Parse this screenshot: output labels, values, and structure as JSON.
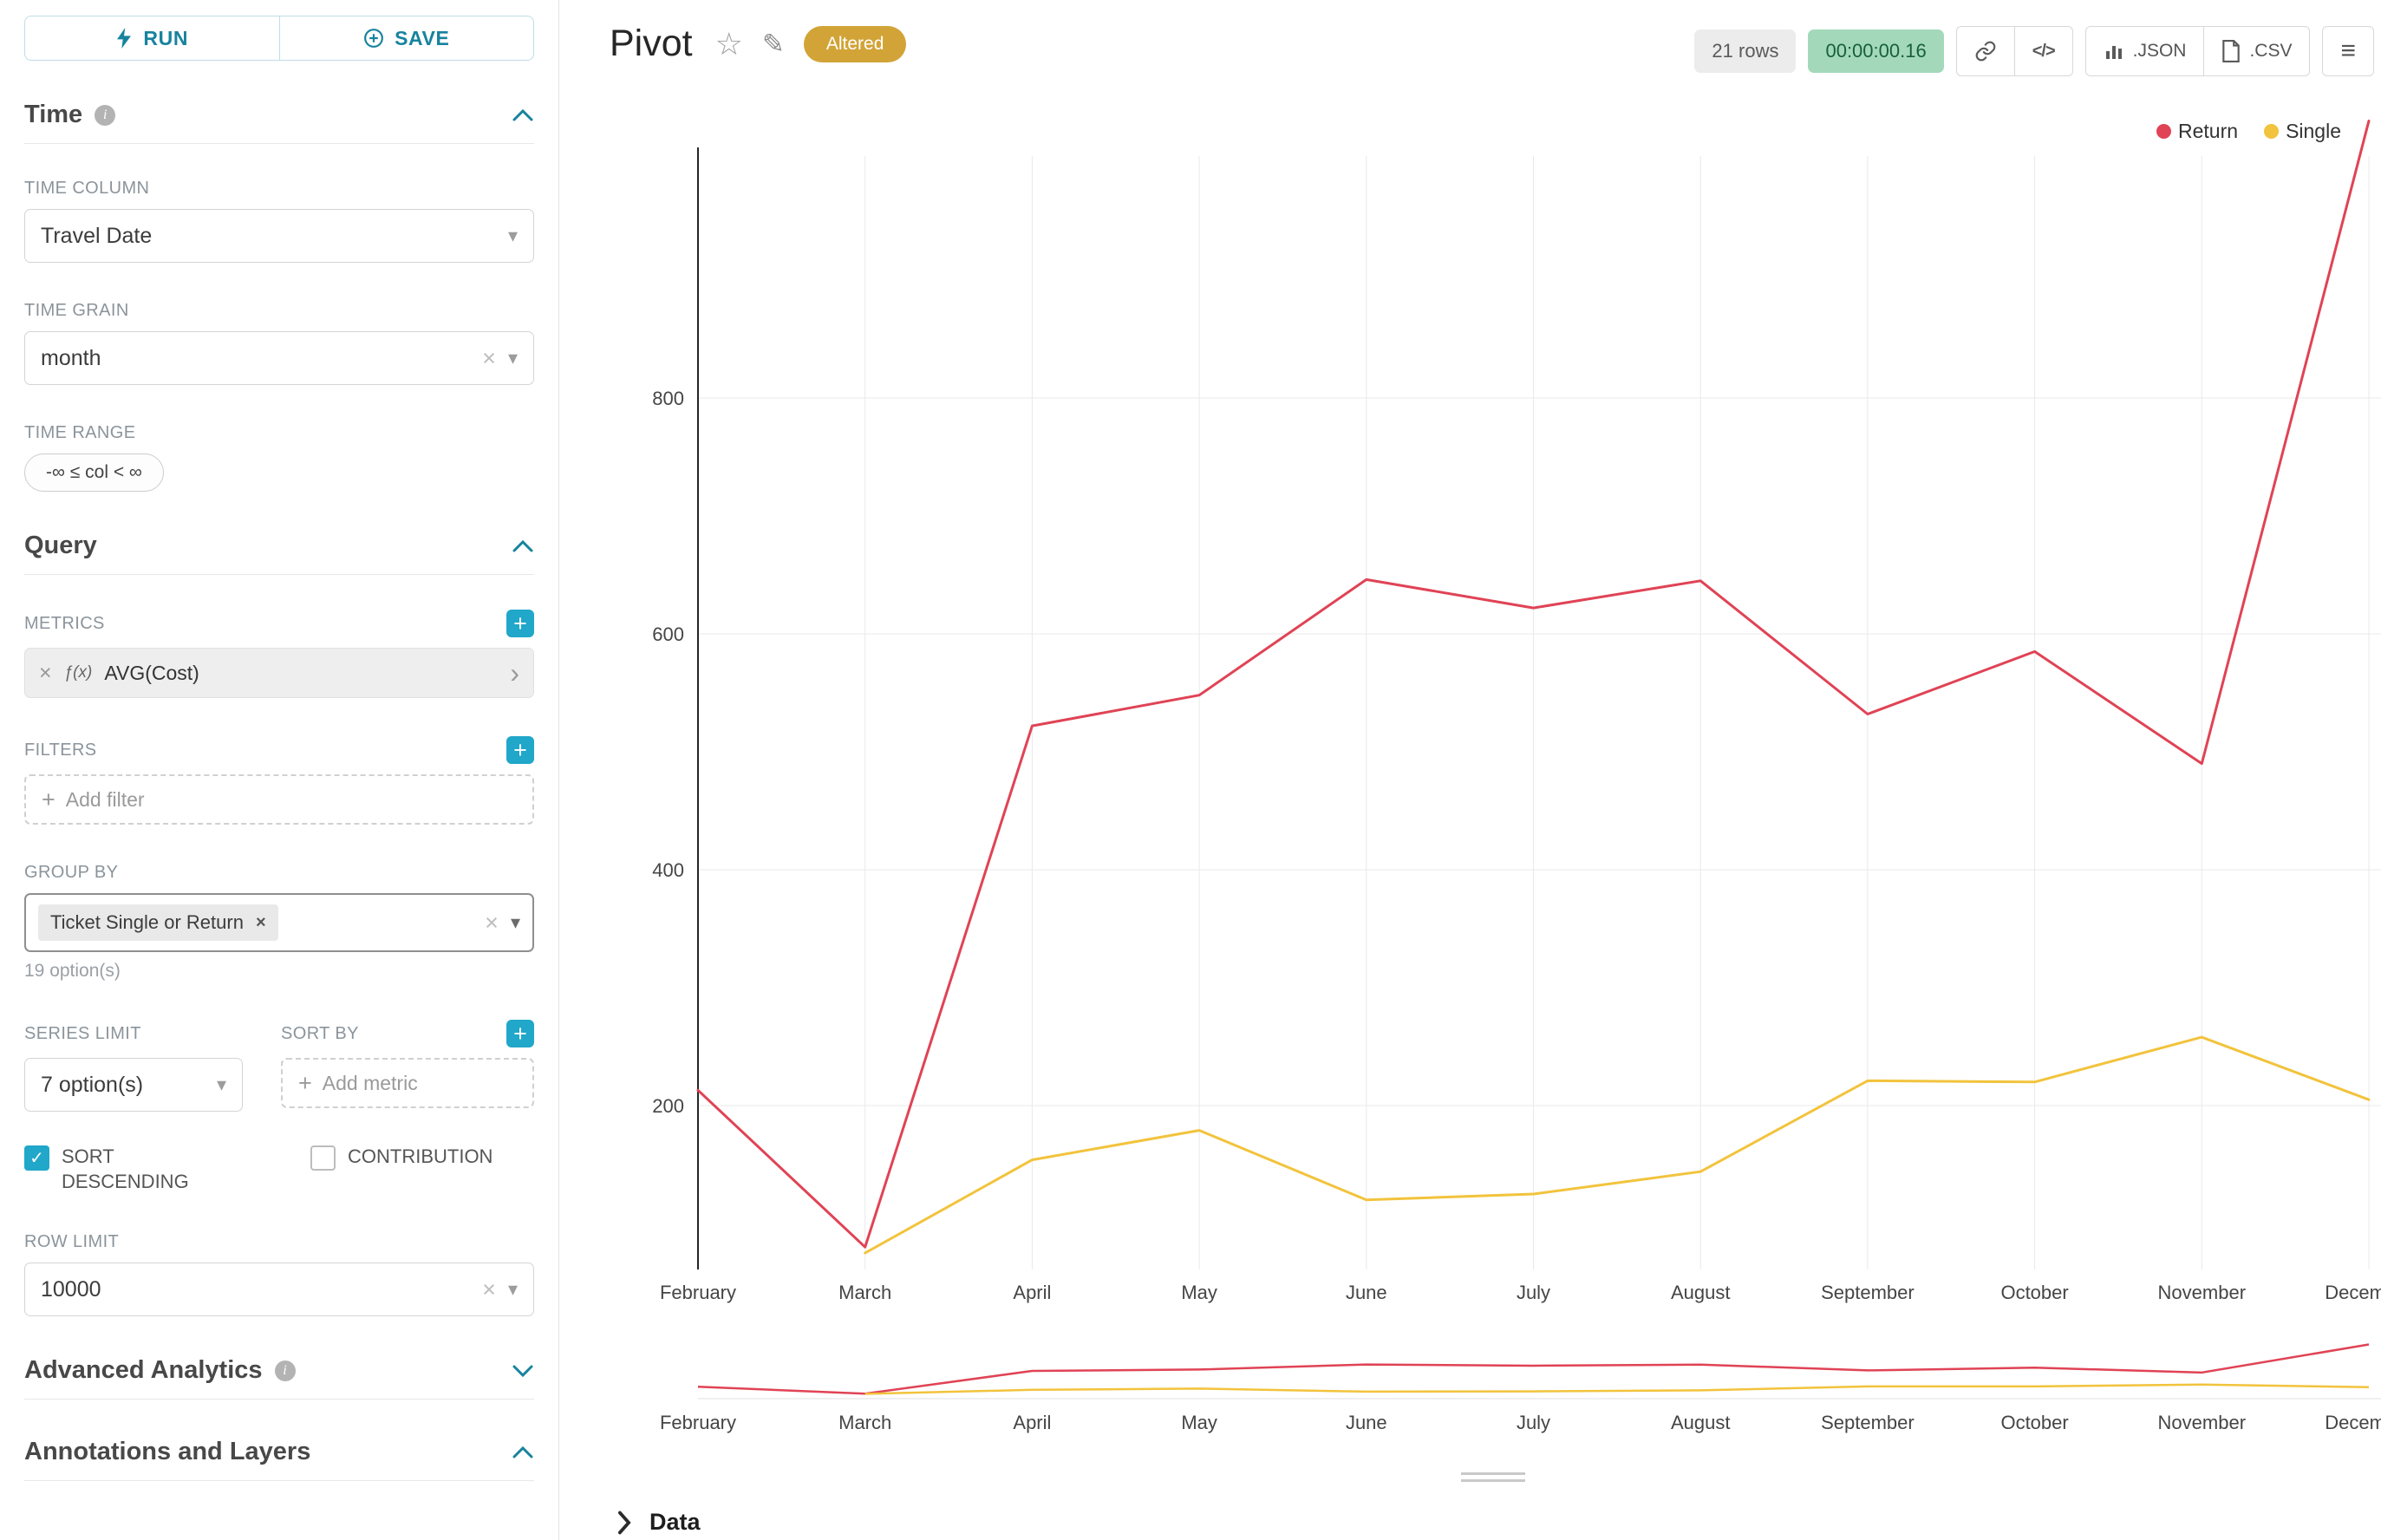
{
  "toolbar": {
    "run_label": "RUN",
    "save_label": "SAVE"
  },
  "sections": {
    "time": {
      "title": "Time",
      "time_column_label": "TIME COLUMN",
      "time_column_value": "Travel Date",
      "time_grain_label": "TIME GRAIN",
      "time_grain_value": "month",
      "time_range_label": "TIME RANGE",
      "time_range_value": "-∞ ≤ col < ∞"
    },
    "query": {
      "title": "Query",
      "metrics_label": "METRICS",
      "metric_prefix": "ƒ(x)",
      "metric_value": "AVG(Cost)",
      "filters_label": "FILTERS",
      "add_filter_placeholder": "Add filter",
      "group_by_label": "GROUP BY",
      "group_by_tag": "Ticket Single or Return",
      "group_by_hint": "19 option(s)",
      "series_limit_label": "SERIES LIMIT",
      "series_limit_value": "7 option(s)",
      "sort_by_label": "SORT BY",
      "add_metric_placeholder": "Add metric",
      "sort_descending_label": "SORT DESCENDING",
      "contribution_label": "CONTRIBUTION",
      "row_limit_label": "ROW LIMIT",
      "row_limit_value": "10000"
    },
    "advanced": {
      "title": "Advanced Analytics"
    },
    "annotations": {
      "title": "Annotations and Layers"
    }
  },
  "header": {
    "title": "Pivot",
    "altered_badge": "Altered",
    "rows_badge": "21 rows",
    "timer": "00:00:00.16",
    "code_button": "</>",
    "json_button": ".JSON",
    "csv_button": ".CSV",
    "menu_button": "≡"
  },
  "data_panel": {
    "label": "Data"
  },
  "chart_data": {
    "type": "line",
    "title": "",
    "categories": [
      "February",
      "March",
      "April",
      "May",
      "June",
      "July",
      "August",
      "September",
      "October",
      "November",
      "December"
    ],
    "series": [
      {
        "name": "Return",
        "color": "#e04355",
        "values": [
          213,
          80,
          522,
          548,
          646,
          622,
          645,
          532,
          585,
          490,
          1035
        ]
      },
      {
        "name": "Single",
        "color": "#f2c33c",
        "values": [
          null,
          75,
          154,
          179,
          120,
          125,
          144,
          221,
          220,
          258,
          205
        ]
      }
    ],
    "y_ticks": [
      200,
      400,
      600,
      800
    ],
    "ylim": [
      0,
      1060
    ],
    "grid": true,
    "legend_position": "top-right",
    "has_brush_minichart": true
  }
}
